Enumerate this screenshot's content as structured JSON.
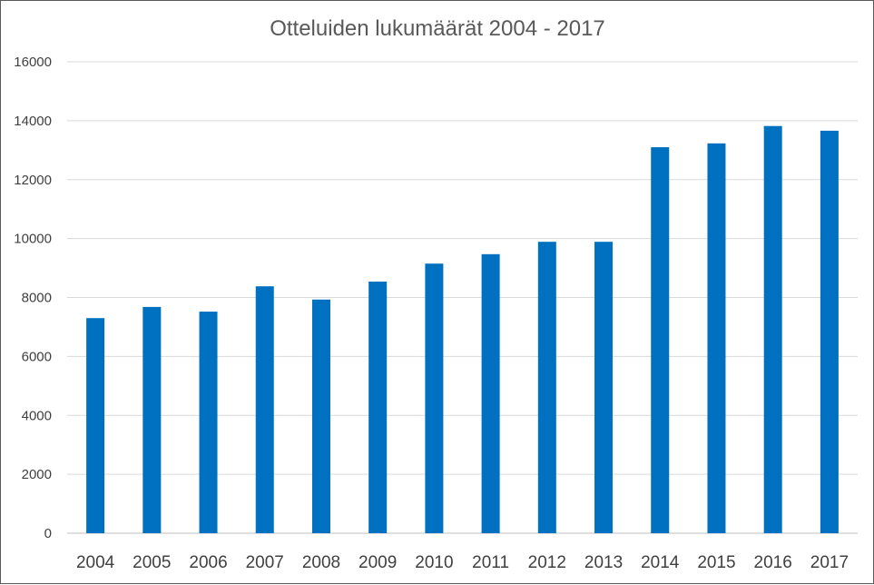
{
  "chart_data": {
    "type": "bar",
    "title": "Otteluiden lukumäärät 2004 - 2017",
    "xlabel": "",
    "ylabel": "",
    "categories": [
      "2004",
      "2005",
      "2006",
      "2007",
      "2008",
      "2009",
      "2010",
      "2011",
      "2012",
      "2013",
      "2014",
      "2015",
      "2016",
      "2017"
    ],
    "values": [
      7300,
      7680,
      7520,
      8380,
      7930,
      8540,
      9150,
      9470,
      9890,
      9890,
      13100,
      13230,
      13820,
      13660
    ],
    "ylim": [
      0,
      16000
    ],
    "yticks": [
      "0",
      "2000",
      "4000",
      "6000",
      "8000",
      "10000",
      "12000",
      "14000",
      "16000"
    ],
    "bar_color": "#0070c0",
    "grid": true,
    "legend": "none"
  }
}
